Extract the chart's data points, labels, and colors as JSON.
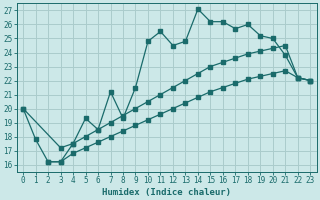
{
  "xlabel": "Humidex (Indice chaleur)",
  "bg_color": "#cce8e8",
  "grid_color": "#aacccc",
  "line_color": "#1a6b6b",
  "xlim": [
    -0.5,
    23.5
  ],
  "ylim": [
    15.5,
    27.5
  ],
  "xticks": [
    0,
    1,
    2,
    3,
    4,
    5,
    6,
    7,
    8,
    9,
    10,
    11,
    12,
    13,
    14,
    15,
    16,
    17,
    18,
    19,
    20,
    21,
    22,
    23
  ],
  "yticks": [
    16,
    17,
    18,
    19,
    20,
    21,
    22,
    23,
    24,
    25,
    26,
    27
  ],
  "line1_x": [
    0,
    1,
    2,
    3,
    4,
    5,
    6,
    7,
    8,
    9,
    10,
    11,
    12,
    13,
    14,
    15,
    16,
    17,
    18,
    19,
    20,
    21,
    22,
    23
  ],
  "line1_y": [
    20.0,
    17.8,
    16.2,
    16.2,
    17.5,
    19.3,
    18.5,
    21.2,
    19.3,
    21.5,
    24.8,
    25.5,
    24.5,
    24.8,
    27.1,
    26.2,
    26.2,
    25.7,
    26.0,
    25.2,
    25.0,
    23.8,
    22.2,
    22.0
  ],
  "line2_x": [
    0,
    3,
    4,
    5,
    6,
    7,
    8,
    9,
    10,
    11,
    12,
    13,
    14,
    15,
    16,
    17,
    18,
    19,
    20,
    21,
    22,
    23
  ],
  "line2_y": [
    20.0,
    17.2,
    17.5,
    18.0,
    18.5,
    19.0,
    19.5,
    20.0,
    20.5,
    21.0,
    21.5,
    22.0,
    22.5,
    23.0,
    23.3,
    23.6,
    23.9,
    24.1,
    24.3,
    24.5,
    22.2,
    22.0
  ],
  "line3_x": [
    2,
    3,
    4,
    5,
    6,
    7,
    8,
    9,
    10,
    11,
    12,
    13,
    14,
    15,
    16,
    17,
    18,
    19,
    20,
    21,
    22,
    23
  ],
  "line3_y": [
    16.2,
    16.2,
    16.8,
    17.2,
    17.6,
    18.0,
    18.4,
    18.8,
    19.2,
    19.6,
    20.0,
    20.4,
    20.8,
    21.2,
    21.5,
    21.8,
    22.1,
    22.3,
    22.5,
    22.7,
    22.2,
    22.0
  ],
  "tick_fontsize": 5.5,
  "xlabel_fontsize": 6.5
}
